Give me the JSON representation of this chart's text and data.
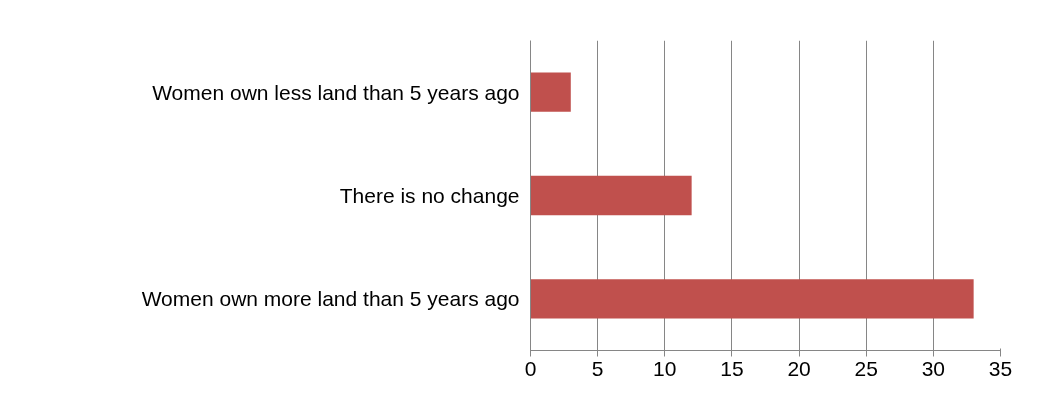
{
  "chart_data": {
    "type": "bar",
    "orientation": "horizontal",
    "categories": [
      "Women own less land than 5 years ago",
      "There is no change",
      "Women own more land than 5 years ago"
    ],
    "values": [
      3,
      12,
      33
    ],
    "color": "#c0504d",
    "xlim": [
      0,
      35
    ],
    "xticks": [
      0,
      5,
      10,
      15,
      20,
      25,
      30,
      35
    ],
    "grid": "x"
  }
}
